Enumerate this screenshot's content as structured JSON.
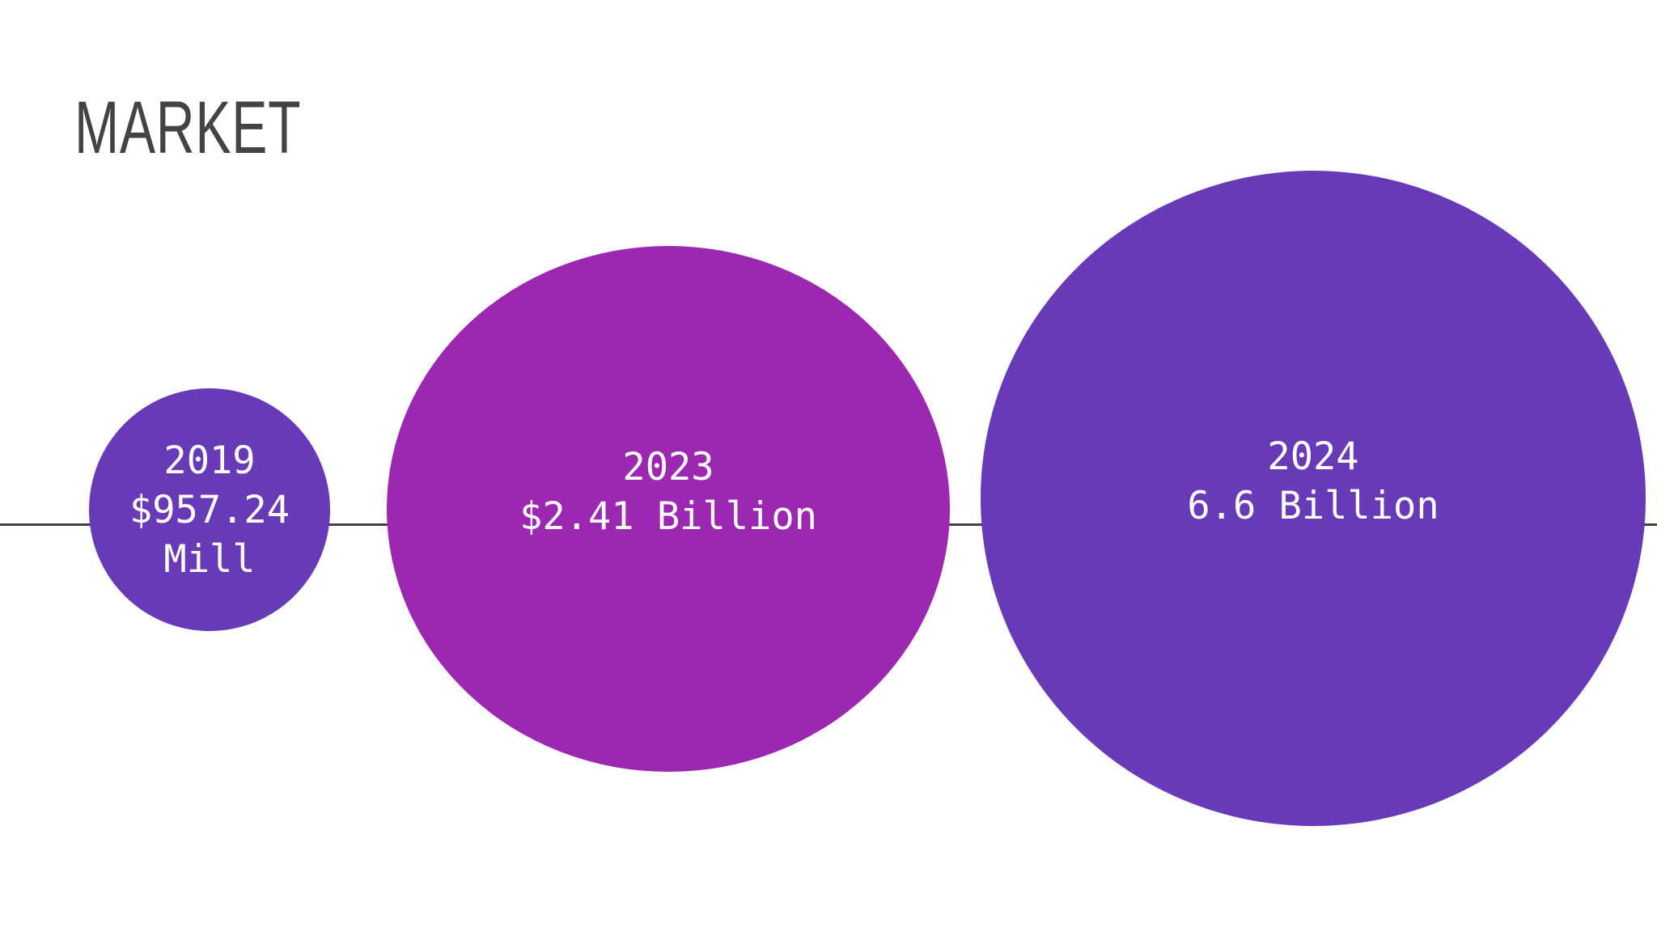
{
  "slide": {
    "title": "MARKET",
    "bubbles": [
      {
        "year": "2019",
        "value": "$957.24",
        "unit": "Mill",
        "color": "#673ab7"
      },
      {
        "year": "2023",
        "value": "$2.41 Billion",
        "color": "#9c27b0"
      },
      {
        "year": "2024",
        "value": "6.6 Billion",
        "color": "#673ab7"
      }
    ],
    "colors": {
      "title": "#434343",
      "line": "#434343",
      "background": "#ffffff",
      "text_on_bubble": "#ffffff"
    }
  }
}
